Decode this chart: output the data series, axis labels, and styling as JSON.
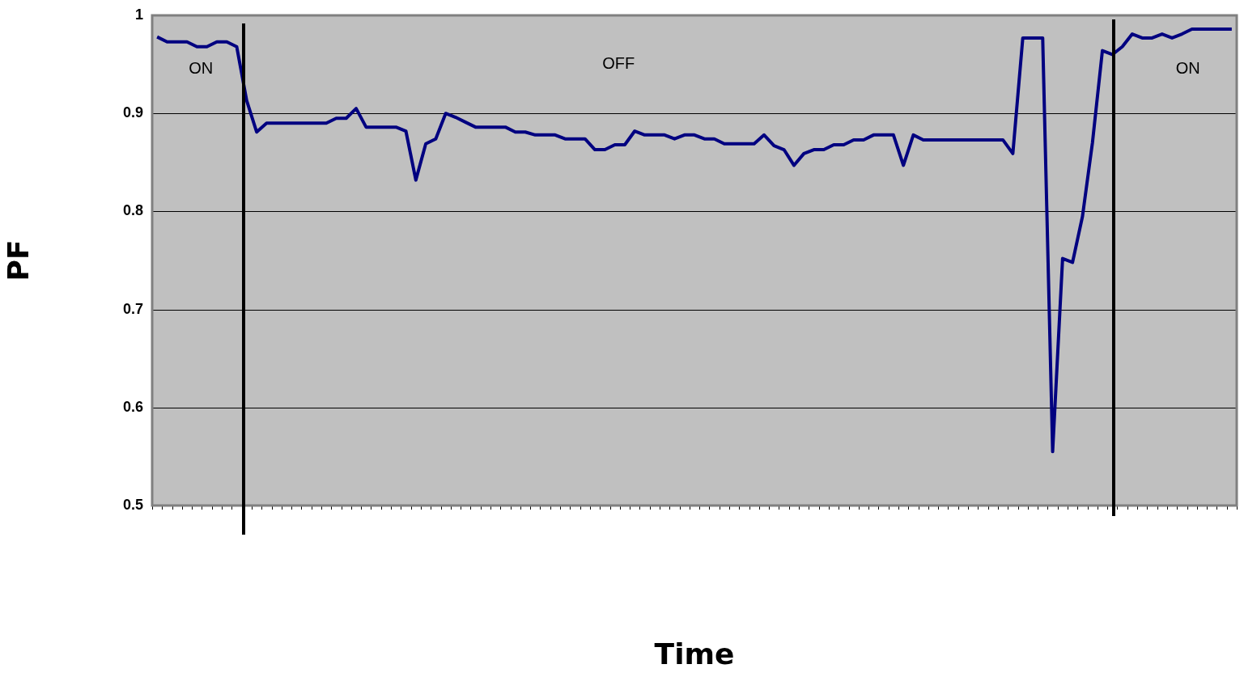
{
  "chart_data": {
    "type": "line",
    "xlabel": "Time",
    "ylabel": "PF",
    "categories": [
      null,
      null,
      null,
      null,
      null,
      null,
      null,
      null,
      null,
      null,
      null,
      null,
      null,
      null,
      null,
      null,
      null,
      null,
      null,
      null,
      null,
      null,
      null,
      null,
      null,
      null,
      null,
      null,
      null,
      null,
      null,
      null,
      null,
      null,
      null,
      null,
      null,
      null,
      null,
      null,
      null,
      null,
      null,
      null,
      null,
      null,
      null,
      null,
      null,
      null,
      null,
      null,
      null,
      null,
      null,
      null,
      null,
      null,
      null,
      null,
      null,
      null,
      null,
      null,
      null,
      null,
      null,
      null,
      null,
      null,
      null,
      null,
      null,
      null,
      null,
      null,
      null,
      null,
      null,
      null,
      null,
      null,
      null,
      null,
      null,
      null,
      null,
      null,
      null,
      null,
      null,
      null,
      null,
      null,
      null,
      null,
      null,
      null,
      null,
      null,
      null,
      null,
      null,
      null,
      null,
      null,
      null,
      null,
      null
    ],
    "series": [
      {
        "color": "#000080",
        "values": [
          0.978,
          0.973,
          0.973,
          0.973,
          0.968,
          0.968,
          0.973,
          0.973,
          0.968,
          0.913,
          0.881,
          0.89,
          0.89,
          0.89,
          0.89,
          0.89,
          0.89,
          0.89,
          0.895,
          0.895,
          0.905,
          0.886,
          0.886,
          0.886,
          0.886,
          0.882,
          0.832,
          0.869,
          0.874,
          0.9,
          0.896,
          0.891,
          0.886,
          0.886,
          0.886,
          0.886,
          0.881,
          0.881,
          0.878,
          0.878,
          0.878,
          0.874,
          0.874,
          0.874,
          0.863,
          0.863,
          0.868,
          0.868,
          0.882,
          0.878,
          0.878,
          0.878,
          0.874,
          0.878,
          0.878,
          0.874,
          0.874,
          0.869,
          0.869,
          0.869,
          0.869,
          0.878,
          0.867,
          0.863,
          0.847,
          0.859,
          0.863,
          0.863,
          0.868,
          0.868,
          0.873,
          0.873,
          0.878,
          0.878,
          0.878,
          0.847,
          0.878,
          0.873,
          0.873,
          0.873,
          0.873,
          0.873,
          0.873,
          0.873,
          0.873,
          0.873,
          0.859,
          0.977,
          0.977,
          0.977,
          0.555,
          0.752,
          0.748,
          0.795,
          0.87,
          0.964,
          0.96,
          0.968,
          0.981,
          0.977,
          0.977,
          0.981,
          0.977,
          0.981,
          0.986,
          0.986,
          0.986,
          0.986,
          0.986
        ]
      }
    ],
    "ylim": [
      0.5,
      1
    ],
    "yticks": [
      0.5,
      0.6,
      0.7,
      0.8,
      0.9,
      1
    ],
    "grid": "y",
    "legend": false,
    "tick_labels": "y",
    "marker": "none",
    "line_style": "solid",
    "annotations": [
      "ON",
      "OFF",
      "ON"
    ]
  }
}
